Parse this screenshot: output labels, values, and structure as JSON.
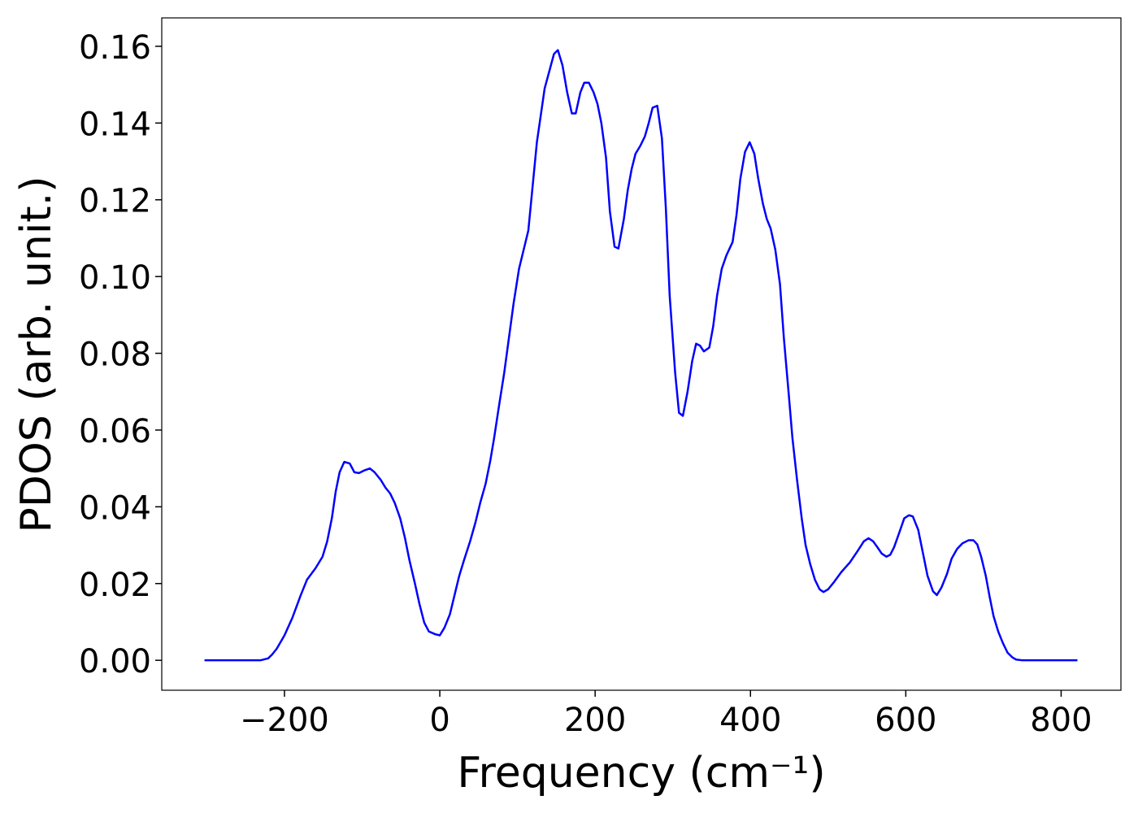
{
  "chart_data": {
    "type": "line",
    "xlabel": "Frequency (cm⁻¹)",
    "ylabel": "PDOS (arb. unit.)",
    "xlim": [
      -358,
      877
    ],
    "ylim": [
      -0.0078,
      0.1674
    ],
    "xticks": [
      {
        "value": -200,
        "label": "−200"
      },
      0,
      200,
      400,
      600,
      800
    ],
    "yticks": [
      {
        "value": 0,
        "label": "0.00"
      },
      {
        "value": 0.02,
        "label": "0.02"
      },
      {
        "value": 0.04,
        "label": "0.04"
      },
      {
        "value": 0.06,
        "label": "0.06"
      },
      {
        "value": 0.08,
        "label": "0.08"
      },
      {
        "value": 0.1,
        "label": "0.10"
      },
      {
        "value": 0.12,
        "label": "0.12"
      },
      {
        "value": 0.14,
        "label": "0.14"
      },
      {
        "value": 0.16,
        "label": "0.16"
      }
    ],
    "grid": false,
    "x": [
      -303,
      -231,
      -221,
      -216,
      -210,
      -200,
      -190,
      -179,
      -171,
      -160,
      -151,
      -145,
      -139,
      -134,
      -129,
      -123,
      -116,
      -110,
      -104,
      -97,
      -90,
      -84,
      -76,
      -70,
      -64,
      -58,
      -51,
      -45,
      -39,
      -32,
      -26,
      -20,
      -14,
      -6,
      0,
      6,
      13,
      19,
      25,
      31,
      39,
      46,
      52,
      59,
      65,
      70,
      76,
      83,
      89,
      95,
      102,
      114,
      125,
      135,
      147,
      152,
      158,
      164,
      170,
      175,
      181,
      186,
      192,
      198,
      203,
      208,
      214,
      219,
      225,
      230,
      237,
      242,
      247,
      252,
      258,
      264,
      269,
      274,
      280,
      286,
      291,
      296,
      303,
      308,
      313,
      319,
      325,
      330,
      335,
      340,
      347,
      352,
      357,
      363,
      369,
      377,
      382,
      387,
      393,
      399,
      405,
      410,
      416,
      421,
      426,
      432,
      438,
      443,
      449,
      454,
      460,
      466,
      471,
      477,
      483,
      489,
      494,
      500,
      508,
      517,
      528,
      538,
      546,
      552,
      558,
      564,
      569,
      575,
      580,
      585,
      592,
      598,
      604,
      609,
      616,
      622,
      628,
      635,
      640,
      646,
      653,
      659,
      666,
      673,
      681,
      687,
      692,
      697,
      703,
      708,
      713,
      719,
      725,
      731,
      737,
      742,
      750,
      821
    ],
    "series": [
      {
        "color": "#0000ff",
        "values": [
          0,
          0,
          0.0005,
          0.0015,
          0.003,
          0.0065,
          0.011,
          0.017,
          0.021,
          0.024,
          0.027,
          0.031,
          0.037,
          0.044,
          0.049,
          0.0517,
          0.0513,
          0.049,
          0.0488,
          0.0495,
          0.05,
          0.049,
          0.047,
          0.045,
          0.0435,
          0.041,
          0.037,
          0.032,
          0.026,
          0.02,
          0.0145,
          0.0098,
          0.0075,
          0.0068,
          0.0065,
          0.0085,
          0.012,
          0.017,
          0.022,
          0.026,
          0.031,
          0.036,
          0.041,
          0.046,
          0.052,
          0.058,
          0.066,
          0.075,
          0.084,
          0.093,
          0.102,
          0.112,
          0.135,
          0.149,
          0.158,
          0.159,
          0.155,
          0.148,
          0.1425,
          0.1425,
          0.148,
          0.1505,
          0.1505,
          0.148,
          0.145,
          0.14,
          0.131,
          0.117,
          0.1078,
          0.1073,
          0.115,
          0.1225,
          0.128,
          0.132,
          0.134,
          0.1365,
          0.14,
          0.144,
          0.1445,
          0.136,
          0.118,
          0.095,
          0.075,
          0.0645,
          0.0637,
          0.07,
          0.078,
          0.0825,
          0.082,
          0.0805,
          0.0815,
          0.087,
          0.095,
          0.102,
          0.1055,
          0.109,
          0.116,
          0.1255,
          0.1325,
          0.135,
          0.132,
          0.1255,
          0.119,
          0.115,
          0.1125,
          0.107,
          0.098,
          0.084,
          0.07,
          0.058,
          0.047,
          0.037,
          0.03,
          0.025,
          0.021,
          0.0185,
          0.0178,
          0.0185,
          0.0205,
          0.023,
          0.0255,
          0.0285,
          0.031,
          0.0318,
          0.031,
          0.0293,
          0.0278,
          0.027,
          0.0275,
          0.0295,
          0.0335,
          0.037,
          0.0378,
          0.0375,
          0.034,
          0.028,
          0.022,
          0.018,
          0.017,
          0.019,
          0.0225,
          0.0265,
          0.029,
          0.0305,
          0.0313,
          0.0313,
          0.0302,
          0.027,
          0.022,
          0.0165,
          0.0115,
          0.0075,
          0.0045,
          0.002,
          0.0008,
          0.0002,
          0,
          0
        ]
      }
    ]
  }
}
